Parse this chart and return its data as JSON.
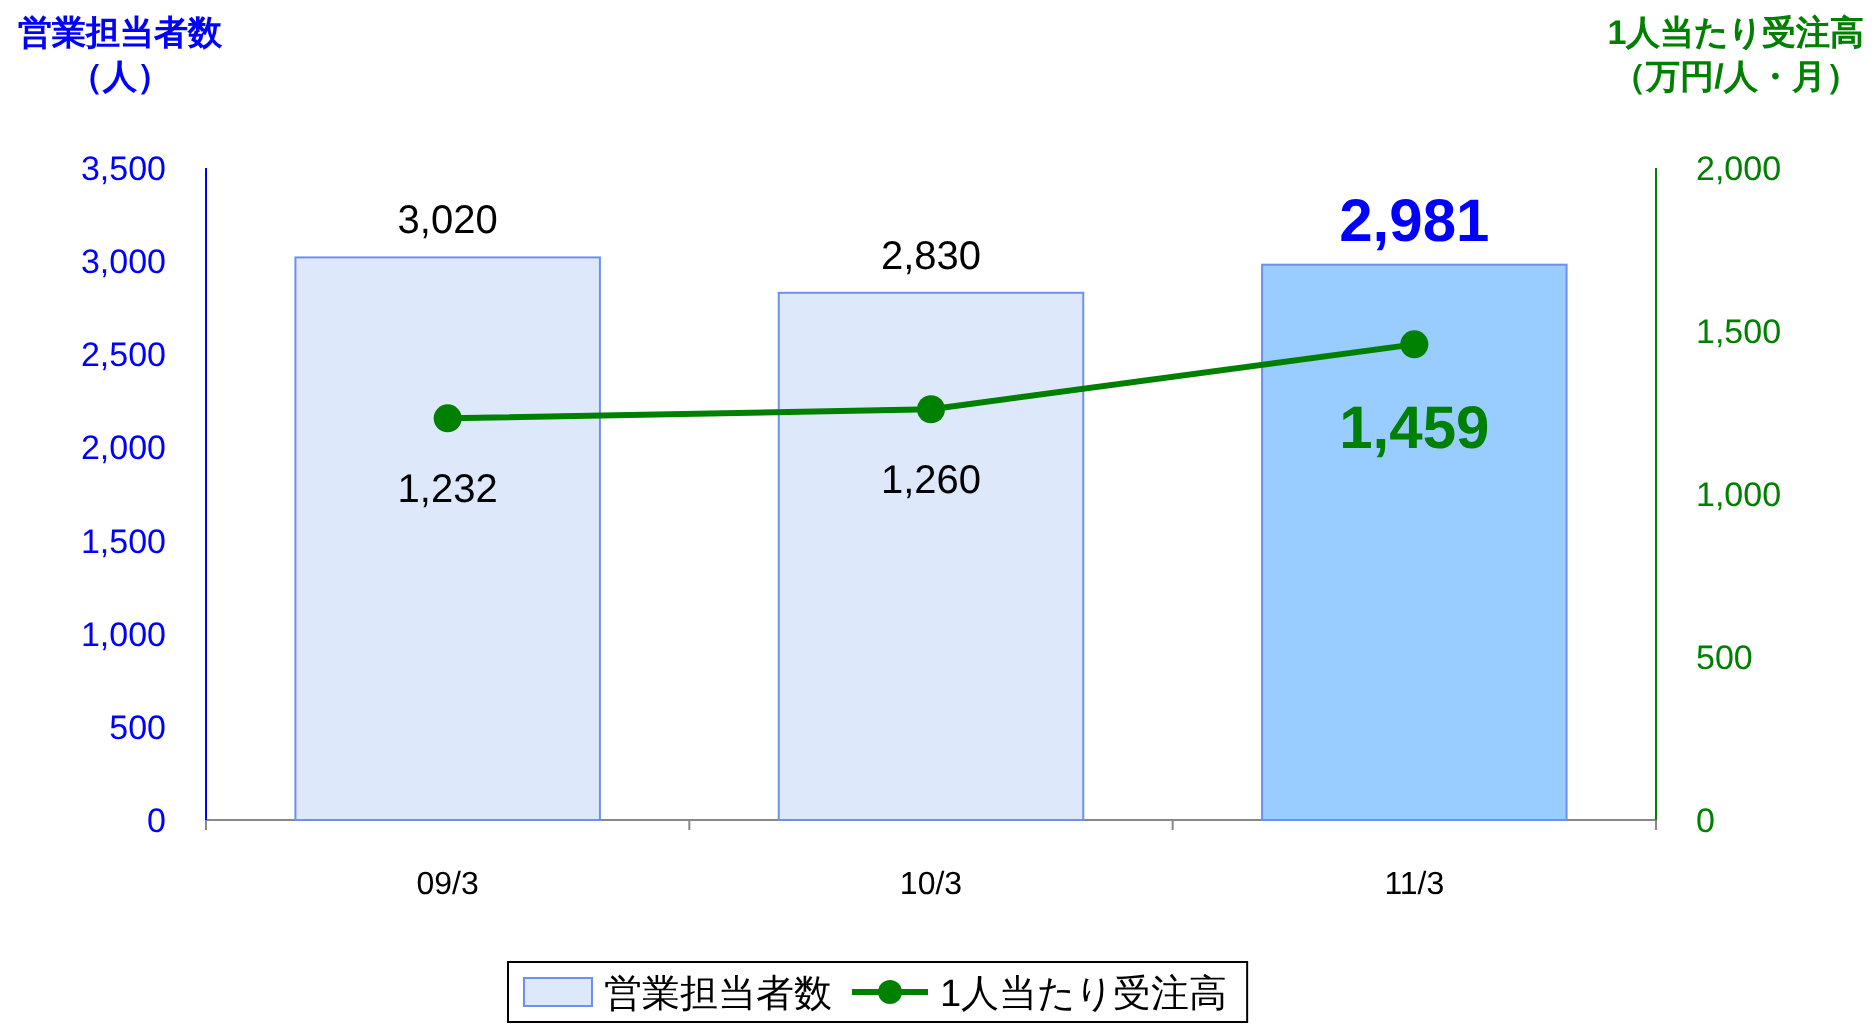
{
  "chart_data": {
    "type": "bar",
    "categories": [
      "09/3",
      "10/3",
      "11/3"
    ],
    "ylabel": "営業担当者数（人）",
    "y2label": "1人当たり受注高（万円/人・月）",
    "ylim": [
      0,
      3500
    ],
    "yticks": [
      0,
      500,
      {
        "value": 1000,
        "label": "1,000"
      },
      {
        "value": 1500,
        "label": "1,500"
      },
      {
        "value": 2000,
        "label": "2,000"
      },
      {
        "value": 2500,
        "label": "2,500"
      },
      {
        "value": 3000,
        "label": "3,000"
      },
      {
        "value": 3500,
        "label": "3,500"
      }
    ],
    "y2lim": [
      0,
      2000
    ],
    "y2ticks": [
      0,
      500,
      {
        "value": 1000,
        "label": "1,000"
      },
      {
        "value": 1500,
        "label": "1,500"
      },
      {
        "value": 2000,
        "label": "2,000"
      }
    ],
    "series": [
      {
        "name": "営業担当者数",
        "colors": [
          "#dde9fb",
          "#dde9fb",
          "#99ccff"
        ],
        "values": [
          3020,
          2830,
          2981
        ],
        "value_labels": [
          "3,020",
          "2,830",
          "2,981"
        ]
      },
      {
        "name": "1人当たり受注高",
        "type": "line",
        "axis": "y2",
        "color": "#008000",
        "values": [
          1232,
          1260,
          1459
        ],
        "value_labels": [
          "1,232",
          "1,260",
          "1,459"
        ]
      }
    ],
    "marker": "circle",
    "legend": "bottom",
    "grid": false
  }
}
